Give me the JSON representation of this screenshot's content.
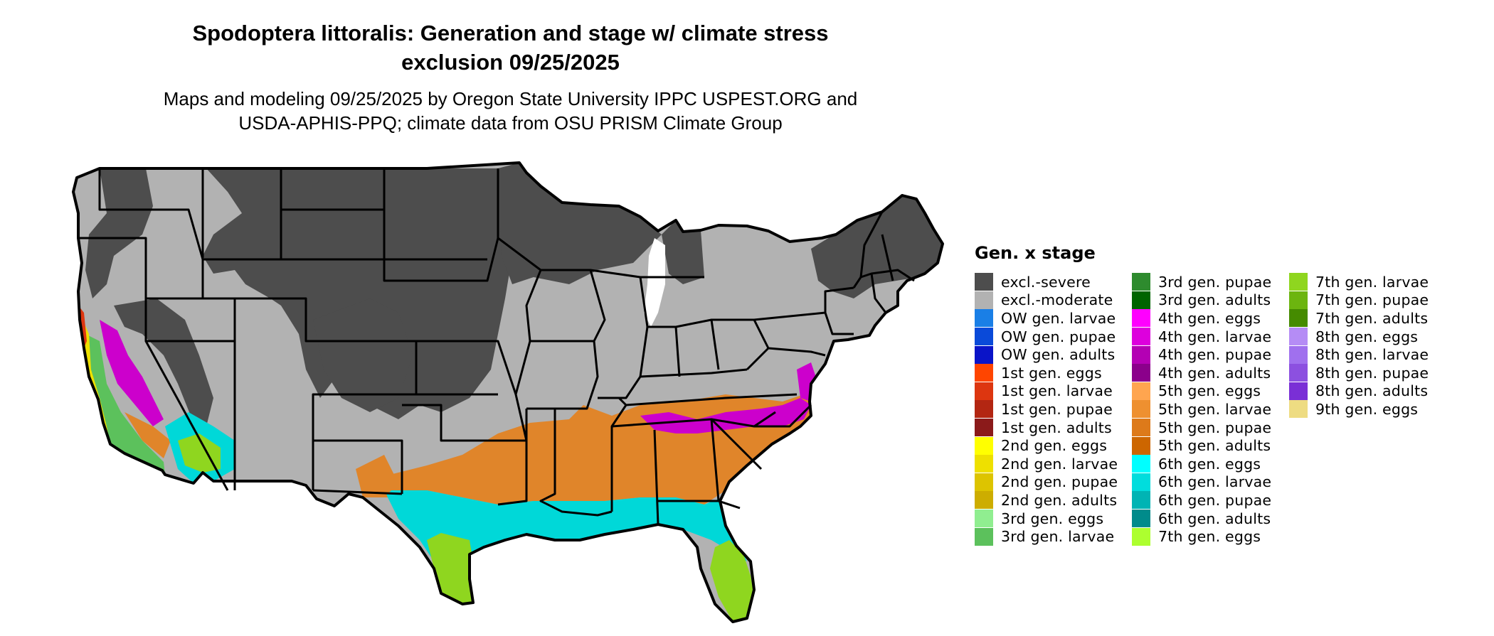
{
  "title_line1": "Spodoptera littoralis: Generation and stage w/ climate stress",
  "title_line2": "exclusion 09/25/2025",
  "subtitle_line1": "Maps and modeling 09/25/2025 by Oregon State University IPPC USPEST.ORG and",
  "subtitle_line2": "USDA-APHIS-PPQ; climate data from OSU PRISM Climate Group",
  "legend": {
    "title": "Gen. x stage",
    "items": [
      {
        "label": "excl.-severe",
        "color": "#4d4d4d"
      },
      {
        "label": "excl.-moderate",
        "color": "#b2b2b2"
      },
      {
        "label": "OW gen. larvae",
        "color": "#1a7fe6"
      },
      {
        "label": "OW gen. pupae",
        "color": "#0a4ad9"
      },
      {
        "label": "OW gen. adults",
        "color": "#0a14c8"
      },
      {
        "label": "1st gen. eggs",
        "color": "#ff4500"
      },
      {
        "label": "1st gen. larvae",
        "color": "#dd3610"
      },
      {
        "label": "1st gen. pupae",
        "color": "#b32612"
      },
      {
        "label": "1st gen. adults",
        "color": "#8b1a1a"
      },
      {
        "label": "2nd gen. eggs",
        "color": "#ffff00"
      },
      {
        "label": "2nd gen. larvae",
        "color": "#eee000"
      },
      {
        "label": "2nd gen. pupae",
        "color": "#ddc400"
      },
      {
        "label": "2nd gen. adults",
        "color": "#cdad00"
      },
      {
        "label": "3rd gen. eggs",
        "color": "#90ee90"
      },
      {
        "label": "3rd gen. larvae",
        "color": "#5cc15c"
      },
      {
        "label": "3rd gen. pupae",
        "color": "#2e8b2e"
      },
      {
        "label": "3rd gen. adults",
        "color": "#006400"
      },
      {
        "label": "4th gen. eggs",
        "color": "#ff00ff"
      },
      {
        "label": "4th gen. larvae",
        "color": "#dd00dd"
      },
      {
        "label": "4th gen. pupae",
        "color": "#b400b4"
      },
      {
        "label": "4th gen. adults",
        "color": "#8b008b"
      },
      {
        "label": "5th gen. eggs",
        "color": "#ffa54f"
      },
      {
        "label": "5th gen. larvae",
        "color": "#ee9030"
      },
      {
        "label": "5th gen. pupae",
        "color": "#dd7a1a"
      },
      {
        "label": "5th gen. adults",
        "color": "#cd6600"
      },
      {
        "label": "6th gen. eggs",
        "color": "#00ffff"
      },
      {
        "label": "6th gen. larvae",
        "color": "#00dddd"
      },
      {
        "label": "6th gen. pupae",
        "color": "#00b4b4"
      },
      {
        "label": "6th gen. adults",
        "color": "#008b8b"
      },
      {
        "label": "7th gen. eggs",
        "color": "#adff2f"
      },
      {
        "label": "7th gen. larvae",
        "color": "#8fd61f"
      },
      {
        "label": "7th gen. pupae",
        "color": "#6cb50f"
      },
      {
        "label": "7th gen. adults",
        "color": "#458b00"
      },
      {
        "label": "8th gen. eggs",
        "color": "#b58cf5"
      },
      {
        "label": "8th gen. larvae",
        "color": "#a070ee"
      },
      {
        "label": "8th gen. pupae",
        "color": "#8c50e0"
      },
      {
        "label": "8th gen. adults",
        "color": "#7a2fd6"
      },
      {
        "label": "9th gen. eggs",
        "color": "#eedc82"
      }
    ]
  }
}
